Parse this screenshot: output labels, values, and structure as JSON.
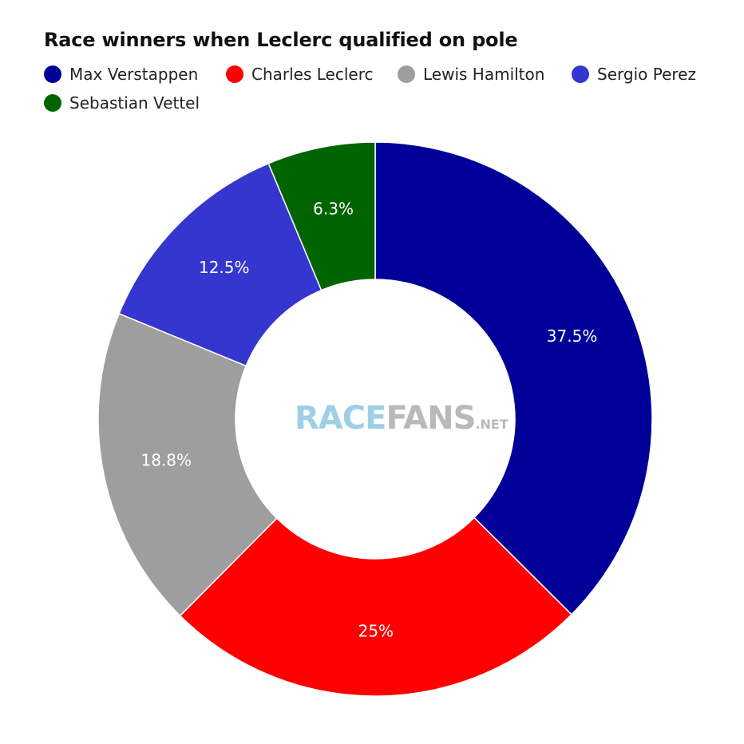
{
  "chart_data": {
    "type": "pie",
    "title": "Race winners when Leclerc qualified on pole",
    "legend_position": "top-left",
    "donut": true,
    "categories": [
      "Max Verstappen",
      "Charles Leclerc",
      "Lewis Hamilton",
      "Sergio Perez",
      "Sebastian Vettel"
    ],
    "values": [
      37.5,
      25,
      18.8,
      12.5,
      6.3
    ],
    "labels": [
      "37.5%",
      "25%",
      "18.8%",
      "12.5%",
      "6.3%"
    ],
    "colors": [
      "#000099",
      "#ff0000",
      "#9e9e9e",
      "#3535cf",
      "#006400"
    ]
  },
  "watermark": {
    "part1": "RACE",
    "part2": "FANS",
    "part3": ".NET"
  }
}
